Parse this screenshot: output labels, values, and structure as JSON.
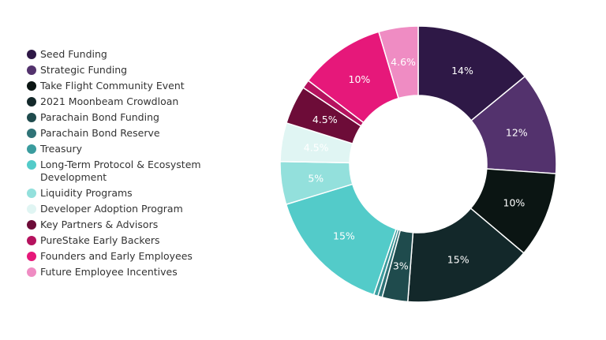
{
  "chart_data": {
    "type": "pie",
    "subtype": "donut",
    "legend_position": "left",
    "slice_border_color": "#ffffff",
    "slices": [
      {
        "name": "Seed Funding",
        "value": 14,
        "label": "14%",
        "color": "#2e1846",
        "label_color": "#ffffff"
      },
      {
        "name": "Strategic Funding",
        "value": 12,
        "label": "12%",
        "color": "#53326d",
        "label_color": "#ffffff"
      },
      {
        "name": "Take Flight Community Event",
        "value": 10,
        "label": "10%",
        "color": "#0b1513",
        "label_color": "#ffffff"
      },
      {
        "name": "2021 Moonbeam Crowdloan",
        "value": 15,
        "label": "15%",
        "color": "#13282a",
        "label_color": "#ffffff"
      },
      {
        "name": "Parachain Bond Funding",
        "value": 3,
        "label": "3%",
        "color": "#1f4b4d",
        "label_color": "#ffffff"
      },
      {
        "name": "Parachain Bond Reserve",
        "value": 0.5,
        "label": "",
        "color": "#2f7377",
        "label_color": "#ffffff"
      },
      {
        "name": "Treasury",
        "value": 0.5,
        "label": "",
        "color": "#3a9c9e",
        "label_color": "#ffffff"
      },
      {
        "name": "Long-Term Protocol & Ecosystem Development",
        "value": 15,
        "label": "15%",
        "color": "#53cbc9",
        "label_color": "#ffffff"
      },
      {
        "name": "Liquidity Programs",
        "value": 5,
        "label": "5%",
        "color": "#93e0dc",
        "label_color": "#ffffff"
      },
      {
        "name": "Developer Adoption Program",
        "value": 4.5,
        "label": "4.5%",
        "color": "#e0f5f3",
        "label_color": "#ffffff"
      },
      {
        "name": "Key Partners & Advisors",
        "value": 4.5,
        "label": "4.5%",
        "color": "#6d0c38",
        "label_color": "#ffffff"
      },
      {
        "name": "PureStake Early Backers",
        "value": 1,
        "label": "",
        "color": "#b5125e",
        "label_color": "#ffffff"
      },
      {
        "name": "Founders and Early Employees",
        "value": 10,
        "label": "10%",
        "color": "#e6187a",
        "label_color": "#ffffff"
      },
      {
        "name": "Future Employee Incentives",
        "value": 4.6,
        "label": "4.6%",
        "color": "#ef8cc3",
        "label_color": "#ffffff"
      }
    ]
  }
}
